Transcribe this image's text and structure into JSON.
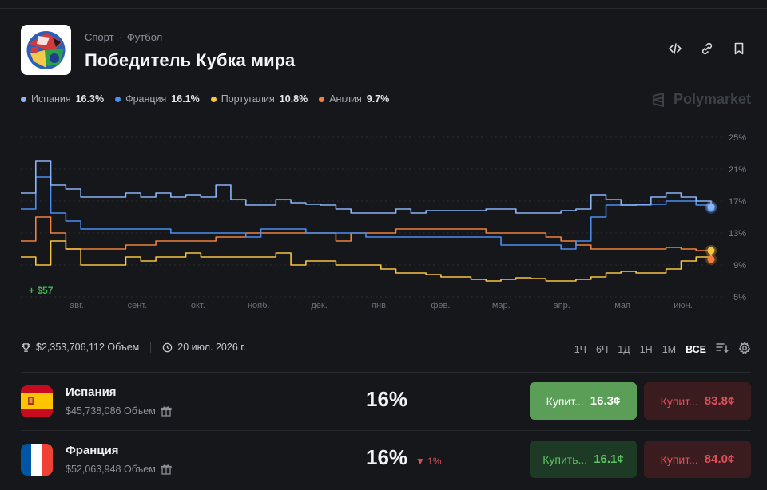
{
  "header": {
    "breadcrumb": [
      "Спорт",
      "Футбол"
    ],
    "title": "Победитель Кубка мира",
    "actions": [
      "code-icon",
      "link-icon",
      "bookmark-icon"
    ]
  },
  "brand": "Polymarket",
  "legend": [
    {
      "name": "Испания",
      "value": "16.3%",
      "color": "#8ab4f8"
    },
    {
      "name": "Франция",
      "value": "16.1%",
      "color": "#4a8ef0"
    },
    {
      "name": "Португалия",
      "value": "10.8%",
      "color": "#f6c343"
    },
    {
      "name": "Англия",
      "value": "9.7%",
      "color": "#f0803c"
    }
  ],
  "chart_data": {
    "type": "line",
    "x_labels": [
      "авг.",
      "сент.",
      "окт.",
      "нояб.",
      "дек.",
      "янв.",
      "фев.",
      "мар.",
      "апр.",
      "мая",
      "июн."
    ],
    "y_ticks": [
      "25%",
      "21%",
      "17%",
      "13%",
      "9%",
      "5%"
    ],
    "ylim": [
      5,
      25
    ],
    "annotation": "+ $57",
    "series": [
      {
        "name": "Испания",
        "color": "#8ab4f8",
        "values": [
          18,
          22,
          19,
          18.5,
          17.5,
          17.5,
          17.5,
          18,
          17.5,
          18,
          17.5,
          17.8,
          17.5,
          19,
          17.2,
          16.5,
          16.5,
          17.2,
          16.8,
          16.6,
          16.5,
          16,
          15.5,
          15.5,
          15.5,
          16,
          15.5,
          15.8,
          15.8,
          15.8,
          15.8,
          16,
          16,
          15.5,
          15.5,
          15.5,
          15.8,
          16,
          17.8,
          17.2,
          16.5,
          16.6,
          17.5,
          18,
          17.5,
          17,
          16.3
        ]
      },
      {
        "name": "Франция",
        "color": "#4a8ef0",
        "values": [
          16,
          20,
          15.5,
          14.5,
          13.5,
          13.5,
          13.5,
          13.5,
          13.5,
          13.5,
          13,
          13,
          13,
          13,
          13,
          12.5,
          13.5,
          13.5,
          13.5,
          13,
          13,
          13,
          13,
          12.5,
          12.5,
          12.5,
          12.5,
          12.5,
          12.5,
          12.5,
          12.5,
          12.5,
          11.5,
          11.5,
          11.5,
          11.5,
          11,
          12,
          15,
          16.5,
          16.5,
          16.5,
          16.6,
          17,
          17,
          16.5,
          16.1
        ]
      },
      {
        "name": "Португалия",
        "color": "#f6c343",
        "values": [
          10,
          9,
          12,
          11,
          9,
          9,
          9,
          10,
          9.5,
          10,
          10,
          10.5,
          10,
          10,
          10,
          10,
          10,
          10.5,
          9,
          9.5,
          9.5,
          9,
          9,
          9,
          8.5,
          8,
          8,
          7.8,
          7.5,
          7.5,
          7.2,
          7,
          7.2,
          7.4,
          7.3,
          7,
          7,
          7.2,
          7.5,
          8,
          8.2,
          8,
          8,
          8.5,
          9.5,
          10,
          10.8
        ]
      },
      {
        "name": "Англия",
        "color": "#f0803c",
        "values": [
          12,
          15,
          13,
          11,
          11,
          11,
          11,
          11.5,
          11.5,
          12,
          12,
          12,
          12,
          12.5,
          12.5,
          13,
          13,
          13,
          13,
          13,
          13,
          12,
          13,
          13,
          13,
          13.5,
          13.5,
          13.5,
          13.5,
          13.5,
          13.5,
          13,
          13,
          13,
          13,
          12.5,
          12,
          11.5,
          11,
          11,
          11,
          11,
          11,
          11.2,
          11,
          10.8,
          9.7
        ]
      }
    ]
  },
  "stats": {
    "volume": "$2,353,706,112 Объем",
    "date": "20 июл. 2026 г."
  },
  "ranges": [
    "1Ч",
    "6Ч",
    "1Д",
    "1Н",
    "1М",
    "ВСЕ"
  ],
  "rows": [
    {
      "name": "Испания",
      "volume": "$45,738,086 Объем",
      "percent": "16%",
      "change": "",
      "yes_label": "Купит...",
      "yes_price": "16.3¢",
      "no_label": "Купит...",
      "no_price": "83.8¢"
    },
    {
      "name": "Франция",
      "volume": "$52,063,948 Объем",
      "percent": "16%",
      "change": "▼ 1%",
      "yes_label": "Купить...",
      "yes_price": "16.1¢",
      "no_label": "Купит...",
      "no_price": "84.0¢"
    }
  ],
  "colors": {
    "yes_active": "#5a9e57",
    "yes_dim": "#1d3a24",
    "no_dim": "#3a1c1e",
    "yes_text_dim": "#5fc266",
    "no_text": "#e0505a"
  }
}
